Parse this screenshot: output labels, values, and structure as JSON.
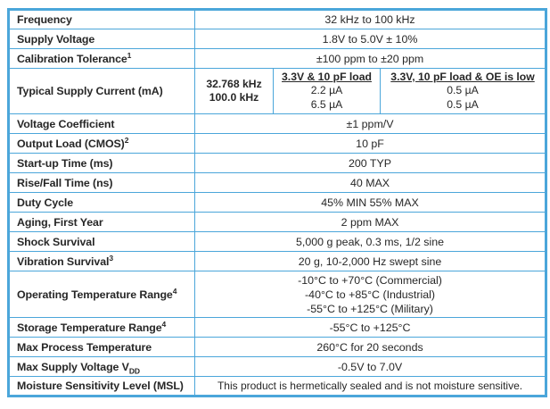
{
  "table": {
    "border_color": "#4ba6da",
    "text_color": "#272727",
    "rows": [
      {
        "label": "Frequency",
        "value": "32 kHz to 100 kHz"
      },
      {
        "label": "Supply Voltage",
        "value": "1.8V to 5.0V ± 10%"
      },
      {
        "label": "Calibration Tolerance",
        "label_sup": "1",
        "value": "±100 ppm to ±20 ppm"
      },
      {
        "type": "supply-current",
        "label": "Typical Supply Current (mA)",
        "freq_labels": [
          "32.768 kHz",
          "100.0 kHz"
        ],
        "columns": [
          {
            "header": "3.3V & 10 pF load",
            "values": [
              "2.2 µA",
              "6.5 µA"
            ]
          },
          {
            "header": "3.3V, 10 pF load & OE is low",
            "values": [
              "0.5 µA",
              "0.5 µA"
            ]
          }
        ]
      },
      {
        "label": "Voltage Coefficient",
        "value": "±1 ppm/V"
      },
      {
        "label": "Output Load (CMOS)",
        "label_sup": "2",
        "value": "10 pF"
      },
      {
        "label": "Start-up Time (ms)",
        "value": "200 TYP"
      },
      {
        "label": "Rise/Fall Time (ns)",
        "value": "40 MAX"
      },
      {
        "label": "Duty Cycle",
        "value": "45% MIN 55% MAX"
      },
      {
        "label": "Aging, First Year",
        "value": "2 ppm MAX"
      },
      {
        "label": "Shock Survival",
        "value": "5,000 g peak, 0.3 ms, 1/2 sine"
      },
      {
        "label": "Vibration Survival",
        "label_sup": "3",
        "value": "20 g, 10-2,000 Hz swept sine"
      },
      {
        "label": "Operating Temperature Range",
        "label_sup": "4",
        "values": [
          "-10°C to +70°C (Commercial)",
          "-40°C to +85°C (Industrial)",
          "-55°C to +125°C (Military)"
        ]
      },
      {
        "label": "Storage Temperature Range",
        "label_sup": "4",
        "value": "-55°C to +125°C"
      },
      {
        "label": "Max Process Temperature",
        "value": "260°C for 20 seconds"
      },
      {
        "label": "Max Supply Voltage V",
        "label_sub": "DD",
        "value": "-0.5V to 7.0V"
      },
      {
        "label": "Moisture Sensitivity Level (MSL)",
        "value": "This product is hermetically sealed and is not moisture sensitive.",
        "msl": true
      }
    ]
  }
}
